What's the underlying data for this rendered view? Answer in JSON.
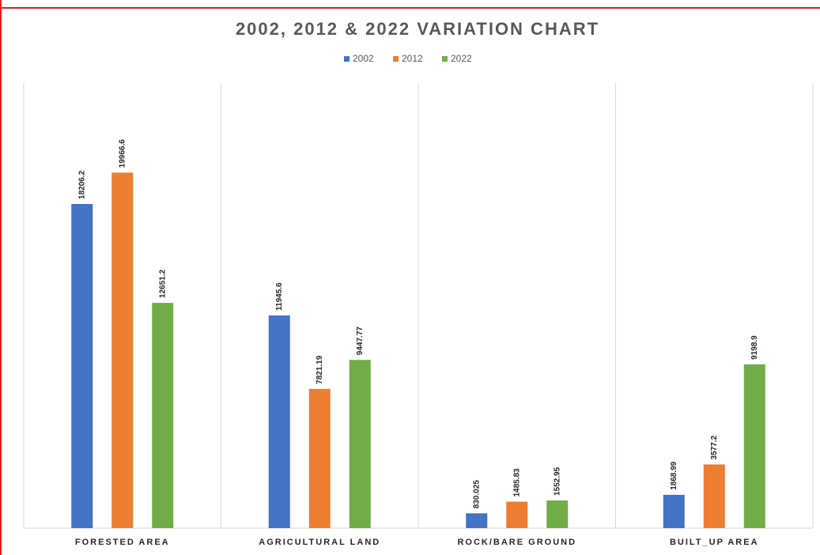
{
  "chart_data": {
    "type": "bar",
    "title": "2002, 2012 & 2022 VARIATION CHART",
    "categories": [
      "FORESTED AREA",
      "AGRICULTURAL LAND",
      "ROCK/BARE GROUND",
      "BUILT_UP AREA"
    ],
    "series": [
      {
        "name": "2002",
        "color": "#4472c4",
        "values": [
          18206.2,
          11945.6,
          830.025,
          1868.99
        ]
      },
      {
        "name": "2012",
        "color": "#ed7d31",
        "values": [
          19966.6,
          7821.19,
          1485.83,
          3577.2
        ]
      },
      {
        "name": "2022",
        "color": "#70ad47",
        "values": [
          12651.2,
          9447.77,
          1552.95,
          9198.9
        ]
      }
    ],
    "ylim": [
      0,
      25000
    ],
    "legend": "top"
  }
}
